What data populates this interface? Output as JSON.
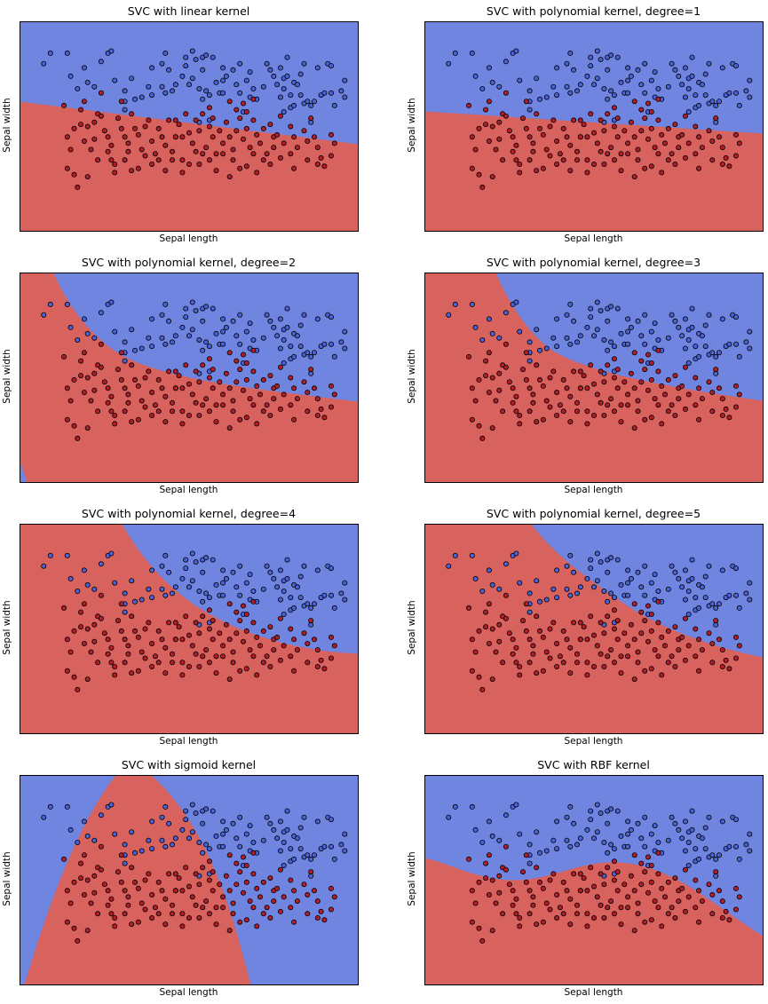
{
  "colors": {
    "class0_region": "#7085DF",
    "class1_region": "#D8625D",
    "class0_point": "#4A62D4",
    "class1_point": "#B01E2A",
    "point_edge": "#000000",
    "frame": "#000000"
  },
  "chart_data": [
    {
      "type": "scatter",
      "title": "SVC with linear kernel",
      "xlabel": "Sepal length",
      "ylabel": "Sepal width",
      "ticks": false,
      "grid": false,
      "decision_boundary": "linear"
    },
    {
      "type": "scatter",
      "title": "SVC with polynomial kernel, degree=1",
      "xlabel": "Sepal length",
      "ylabel": "Sepal width",
      "ticks": false,
      "grid": false,
      "decision_boundary": "linear"
    },
    {
      "type": "scatter",
      "title": "SVC with polynomial kernel, degree=2",
      "xlabel": "Sepal length",
      "ylabel": "Sepal width",
      "ticks": false,
      "grid": false,
      "decision_boundary": "curved"
    },
    {
      "type": "scatter",
      "title": "SVC with polynomial kernel, degree=3",
      "xlabel": "Sepal length",
      "ylabel": "Sepal width",
      "ticks": false,
      "grid": false,
      "decision_boundary": "curved"
    },
    {
      "type": "scatter",
      "title": "SVC with polynomial kernel, degree=4",
      "xlabel": "Sepal length",
      "ylabel": "Sepal width",
      "ticks": false,
      "grid": false,
      "decision_boundary": "curved"
    },
    {
      "type": "scatter",
      "title": "SVC with polynomial kernel, degree=5",
      "xlabel": "Sepal length",
      "ylabel": "Sepal width",
      "ticks": false,
      "grid": false,
      "decision_boundary": "curved"
    },
    {
      "type": "scatter",
      "title": "SVC with sigmoid kernel",
      "xlabel": "Sepal length",
      "ylabel": "Sepal width",
      "ticks": false,
      "grid": false,
      "decision_boundary": "arch"
    },
    {
      "type": "scatter",
      "title": "SVC with RBF kernel",
      "xlabel": "Sepal length",
      "ylabel": "Sepal width",
      "ticks": false,
      "grid": false,
      "decision_boundary": "wavy"
    }
  ],
  "points": {
    "blue": [
      [
        0.07,
        0.2
      ],
      [
        0.09,
        0.15
      ],
      [
        0.14,
        0.15
      ],
      [
        0.15,
        0.26
      ],
      [
        0.17,
        0.32
      ],
      [
        0.19,
        0.22
      ],
      [
        0.2,
        0.29
      ],
      [
        0.22,
        0.31
      ],
      [
        0.24,
        0.19
      ],
      [
        0.26,
        0.15
      ],
      [
        0.27,
        0.14
      ],
      [
        0.28,
        0.28
      ],
      [
        0.31,
        0.33
      ],
      [
        0.31,
        0.38
      ],
      [
        0.31,
        0.42
      ],
      [
        0.33,
        0.27
      ],
      [
        0.34,
        0.37
      ],
      [
        0.36,
        0.36
      ],
      [
        0.38,
        0.31
      ],
      [
        0.39,
        0.22
      ],
      [
        0.39,
        0.35
      ],
      [
        0.42,
        0.2
      ],
      [
        0.42,
        0.31
      ],
      [
        0.43,
        0.15
      ],
      [
        0.43,
        0.34
      ],
      [
        0.44,
        0.23
      ],
      [
        0.45,
        0.33
      ],
      [
        0.46,
        0.3
      ],
      [
        0.48,
        0.26
      ],
      [
        0.49,
        0.17
      ],
      [
        0.49,
        0.21
      ],
      [
        0.5,
        0.3
      ],
      [
        0.51,
        0.14
      ],
      [
        0.51,
        0.27
      ],
      [
        0.52,
        0.18
      ],
      [
        0.53,
        0.32
      ],
      [
        0.53,
        0.48
      ],
      [
        0.54,
        0.17
      ],
      [
        0.54,
        0.23
      ],
      [
        0.54,
        0.37
      ],
      [
        0.55,
        0.16
      ],
      [
        0.55,
        0.33
      ],
      [
        0.56,
        0.35
      ],
      [
        0.56,
        0.47
      ],
      [
        0.57,
        0.17
      ],
      [
        0.58,
        0.29
      ],
      [
        0.59,
        0.34
      ],
      [
        0.6,
        0.22
      ],
      [
        0.6,
        0.28
      ],
      [
        0.6,
        0.34
      ],
      [
        0.61,
        0.26
      ],
      [
        0.63,
        0.23
      ],
      [
        0.64,
        0.3
      ],
      [
        0.65,
        0.2
      ],
      [
        0.65,
        0.34
      ],
      [
        0.66,
        0.43
      ],
      [
        0.67,
        0.28
      ],
      [
        0.68,
        0.24
      ],
      [
        0.68,
        0.36
      ],
      [
        0.69,
        0.32
      ],
      [
        0.7,
        0.37
      ],
      [
        0.72,
        0.31
      ],
      [
        0.73,
        0.2
      ],
      [
        0.74,
        0.23
      ],
      [
        0.75,
        0.26
      ],
      [
        0.76,
        0.3
      ],
      [
        0.77,
        0.22
      ],
      [
        0.77,
        0.36
      ],
      [
        0.78,
        0.27
      ],
      [
        0.78,
        0.32
      ],
      [
        0.78,
        0.43
      ],
      [
        0.79,
        0.17
      ],
      [
        0.79,
        0.26
      ],
      [
        0.8,
        0.35
      ],
      [
        0.8,
        0.41
      ],
      [
        0.81,
        0.29
      ],
      [
        0.81,
        0.4
      ],
      [
        0.82,
        0.3
      ],
      [
        0.83,
        0.25
      ],
      [
        0.83,
        0.35
      ],
      [
        0.84,
        0.2
      ],
      [
        0.84,
        0.39
      ],
      [
        0.85,
        0.38
      ],
      [
        0.86,
        0.4
      ],
      [
        0.86,
        0.48
      ],
      [
        0.87,
        0.38
      ],
      [
        0.88,
        0.22
      ],
      [
        0.89,
        0.35
      ],
      [
        0.9,
        0.34
      ],
      [
        0.91,
        0.2
      ],
      [
        0.92,
        0.21
      ],
      [
        0.92,
        0.34
      ],
      [
        0.93,
        0.4
      ],
      [
        0.95,
        0.33
      ],
      [
        0.96,
        0.28
      ],
      [
        0.96,
        0.36
      ]
    ],
    "red": [
      [
        0.13,
        0.4
      ],
      [
        0.14,
        0.55
      ],
      [
        0.16,
        0.51
      ],
      [
        0.18,
        0.42
      ],
      [
        0.19,
        0.38
      ],
      [
        0.2,
        0.5
      ],
      [
        0.21,
        0.61
      ],
      [
        0.22,
        0.56
      ],
      [
        0.23,
        0.44
      ],
      [
        0.24,
        0.45
      ],
      [
        0.25,
        0.52
      ],
      [
        0.26,
        0.55
      ],
      [
        0.27,
        0.59
      ],
      [
        0.28,
        0.68
      ],
      [
        0.28,
        0.72
      ],
      [
        0.29,
        0.46
      ],
      [
        0.3,
        0.51
      ],
      [
        0.31,
        0.55
      ],
      [
        0.32,
        0.58
      ],
      [
        0.32,
        0.62
      ],
      [
        0.33,
        0.44
      ],
      [
        0.34,
        0.51
      ],
      [
        0.35,
        0.54
      ],
      [
        0.36,
        0.61
      ],
      [
        0.37,
        0.5
      ],
      [
        0.38,
        0.47
      ],
      [
        0.39,
        0.57
      ],
      [
        0.4,
        0.63
      ],
      [
        0.41,
        0.51
      ],
      [
        0.42,
        0.55
      ],
      [
        0.43,
        0.59
      ],
      [
        0.44,
        0.47
      ],
      [
        0.45,
        0.62
      ],
      [
        0.46,
        0.55
      ],
      [
        0.47,
        0.49
      ],
      [
        0.48,
        0.55
      ],
      [
        0.48,
        0.66
      ],
      [
        0.49,
        0.44
      ],
      [
        0.5,
        0.53
      ],
      [
        0.51,
        0.58
      ],
      [
        0.52,
        0.47
      ],
      [
        0.52,
        0.62
      ],
      [
        0.53,
        0.52
      ],
      [
        0.54,
        0.44
      ],
      [
        0.55,
        0.6
      ],
      [
        0.56,
        0.5
      ],
      [
        0.57,
        0.55
      ],
      [
        0.57,
        0.46
      ],
      [
        0.58,
        0.63
      ],
      [
        0.59,
        0.52
      ],
      [
        0.6,
        0.58
      ],
      [
        0.61,
        0.48
      ],
      [
        0.62,
        0.55
      ],
      [
        0.63,
        0.61
      ],
      [
        0.64,
        0.52
      ],
      [
        0.65,
        0.46
      ],
      [
        0.66,
        0.56
      ],
      [
        0.67,
        0.51
      ],
      [
        0.68,
        0.6
      ],
      [
        0.69,
        0.47
      ],
      [
        0.7,
        0.54
      ],
      [
        0.71,
        0.58
      ],
      [
        0.72,
        0.51
      ],
      [
        0.73,
        0.63
      ],
      [
        0.74,
        0.49
      ],
      [
        0.75,
        0.55
      ],
      [
        0.75,
        0.6
      ],
      [
        0.76,
        0.54
      ],
      [
        0.77,
        0.45
      ],
      [
        0.78,
        0.58
      ],
      [
        0.8,
        0.5
      ],
      [
        0.81,
        0.55
      ],
      [
        0.82,
        0.6
      ],
      [
        0.84,
        0.52
      ],
      [
        0.85,
        0.57
      ],
      [
        0.86,
        0.46
      ],
      [
        0.87,
        0.55
      ],
      [
        0.88,
        0.6
      ],
      [
        0.89,
        0.65
      ],
      [
        0.9,
        0.69
      ],
      [
        0.92,
        0.54
      ],
      [
        0.93,
        0.58
      ],
      [
        0.24,
        0.34
      ],
      [
        0.3,
        0.38
      ],
      [
        0.46,
        0.47
      ],
      [
        0.46,
        0.55
      ],
      [
        0.53,
        0.68
      ],
      [
        0.58,
        0.71
      ],
      [
        0.63,
        0.66
      ],
      [
        0.67,
        0.69
      ],
      [
        0.7,
        0.72
      ],
      [
        0.74,
        0.68
      ],
      [
        0.81,
        0.7
      ],
      [
        0.56,
        0.41
      ],
      [
        0.62,
        0.38
      ],
      [
        0.64,
        0.42
      ],
      [
        0.66,
        0.39
      ],
      [
        0.67,
        0.43
      ],
      [
        0.69,
        0.37
      ],
      [
        0.18,
        0.49
      ],
      [
        0.19,
        0.57
      ],
      [
        0.22,
        0.48
      ],
      [
        0.15,
        0.61
      ],
      [
        0.14,
        0.7
      ],
      [
        0.16,
        0.73
      ],
      [
        0.17,
        0.79
      ],
      [
        0.2,
        0.74
      ],
      [
        0.23,
        0.66
      ],
      [
        0.26,
        0.62
      ],
      [
        0.27,
        0.66
      ],
      [
        0.31,
        0.66
      ],
      [
        0.33,
        0.71
      ],
      [
        0.35,
        0.7
      ],
      [
        0.37,
        0.64
      ],
      [
        0.39,
        0.68
      ],
      [
        0.41,
        0.66
      ],
      [
        0.43,
        0.71
      ],
      [
        0.45,
        0.66
      ],
      [
        0.48,
        0.72
      ],
      [
        0.5,
        0.68
      ],
      [
        0.54,
        0.63
      ],
      [
        0.56,
        0.66
      ],
      [
        0.6,
        0.63
      ],
      [
        0.62,
        0.74
      ],
      [
        0.65,
        0.7
      ],
      [
        0.69,
        0.63
      ],
      [
        0.72,
        0.66
      ],
      [
        0.77,
        0.65
      ],
      [
        0.8,
        0.63
      ],
      [
        0.85,
        0.66
      ],
      [
        0.88,
        0.68
      ],
      [
        0.92,
        0.64
      ]
    ]
  }
}
